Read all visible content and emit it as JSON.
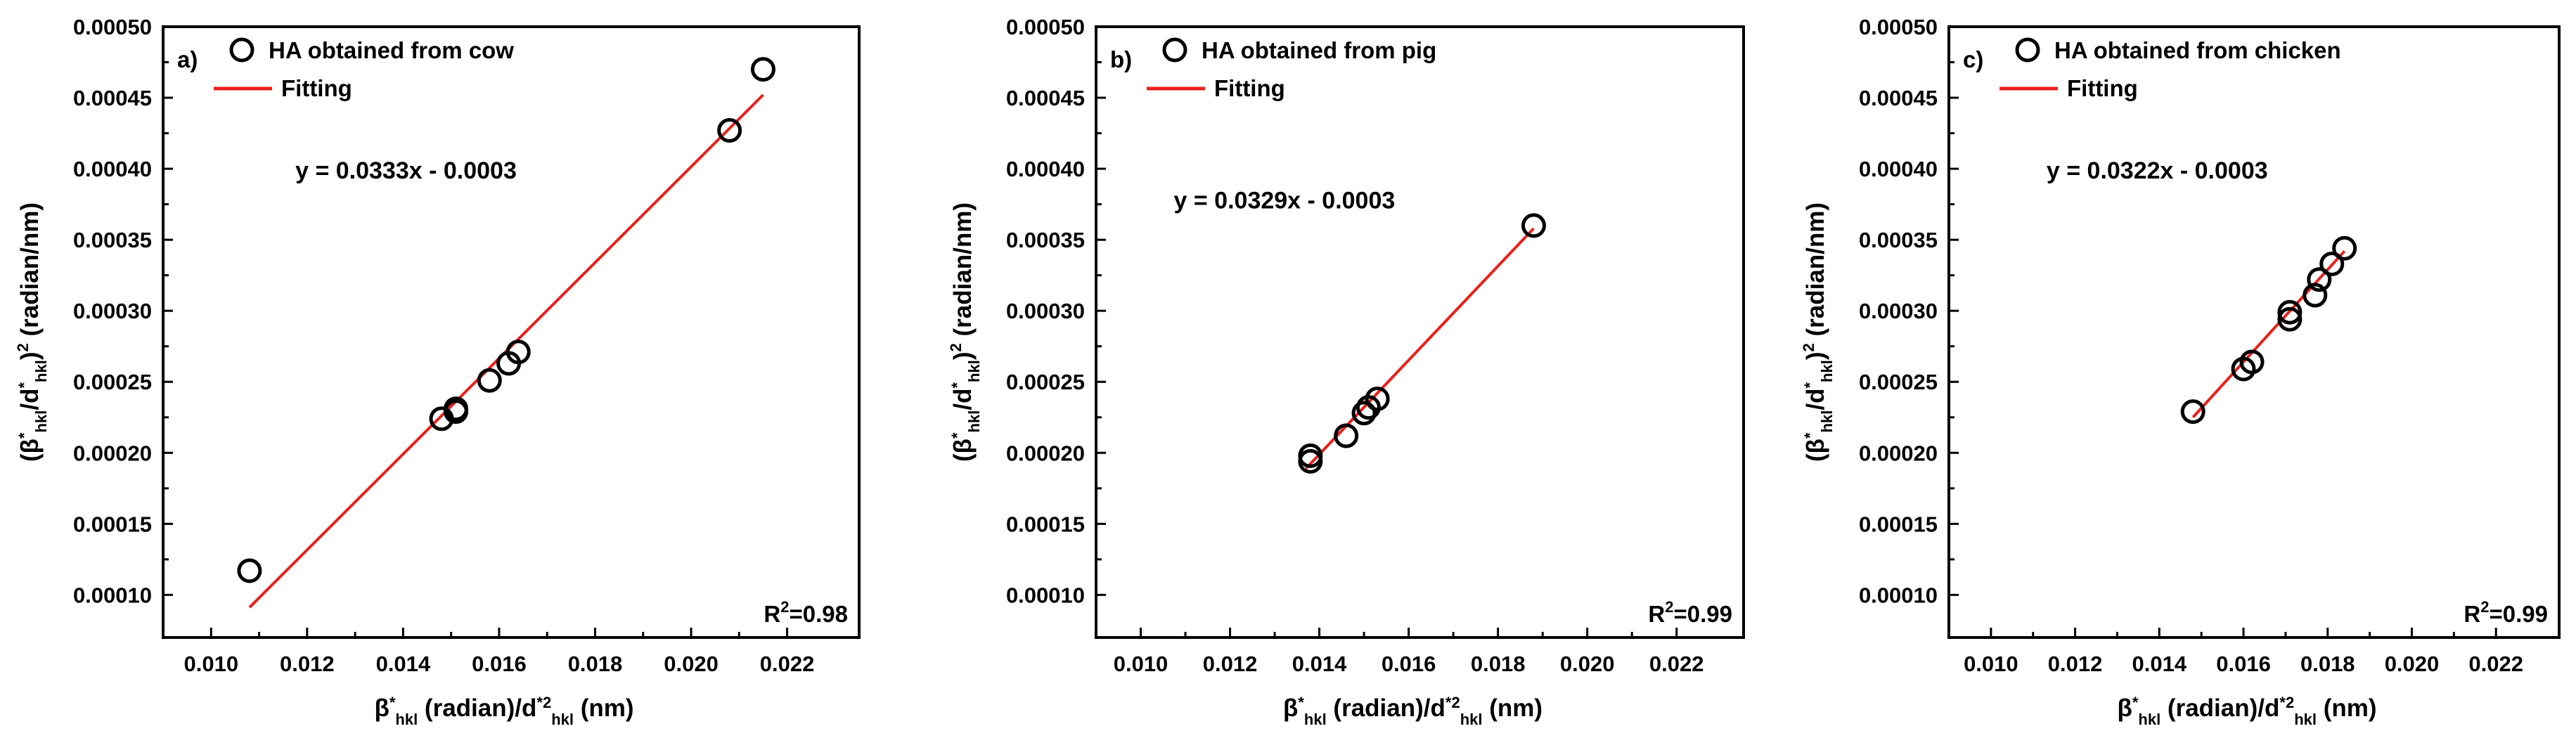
{
  "chart_data": [
    {
      "type": "scatter",
      "panel_label": "a)",
      "title": "",
      "xlabel": "β*hkl (radian)/d*2hkl (nm)",
      "ylabel": "(β*hkl/d*hkl)2 (radian/nm)",
      "xlim": [
        0.009,
        0.0235
      ],
      "ylim": [
        7e-05,
        0.0005
      ],
      "x_ticks": [
        "0.010",
        "0.012",
        "0.014",
        "0.016",
        "0.018",
        "0.020",
        "0.022"
      ],
      "y_ticks": [
        "0.00010",
        "0.00015",
        "0.00020",
        "0.00025",
        "0.00030",
        "0.00035",
        "0.00040",
        "0.00045",
        "0.00050"
      ],
      "legend": {
        "marker_label": "HA obtained from cow",
        "line_label": "Fitting",
        "placement": "top-left"
      },
      "equation": "y = 0.0333x - 0.0003",
      "r2": {
        "prefix": "R",
        "sup": "2",
        "value": "=0.98"
      },
      "series": [
        {
          "name": "HA obtained from cow",
          "x": [
            0.0108,
            0.0148,
            0.0151,
            0.0151,
            0.0158,
            0.0162,
            0.0164,
            0.0208,
            0.0215
          ],
          "y": [
            0.000117,
            0.000224,
            0.000231,
            0.000229,
            0.000251,
            0.000263,
            0.000271,
            0.000427,
            0.00047
          ]
        }
      ],
      "fit": {
        "name": "Fitting",
        "x": [
          0.0108,
          0.0215
        ],
        "y": [
          9.12e-05,
          0.000452
        ]
      },
      "colors": {
        "marker": "#000000",
        "fit": "#e8211b"
      }
    },
    {
      "type": "scatter",
      "panel_label": "b)",
      "title": "",
      "xlabel": "β*hkl (radian)/d*2hkl (nm)",
      "ylabel": "(β*hkl/d*hkl)2 (radian/nm)",
      "xlim": [
        0.009,
        0.0235
      ],
      "ylim": [
        7e-05,
        0.0005
      ],
      "x_ticks": [
        "0.010",
        "0.012",
        "0.014",
        "0.016",
        "0.018",
        "0.020",
        "0.022"
      ],
      "y_ticks": [
        "0.00010",
        "0.00015",
        "0.00020",
        "0.00025",
        "0.00030",
        "0.00035",
        "0.00040",
        "0.00045",
        "0.00050"
      ],
      "legend": {
        "marker_label": "HA obtained from pig",
        "line_label": "Fitting",
        "placement": "top-left"
      },
      "equation": "y = 0.0329x - 0.0003",
      "r2": {
        "prefix": "R",
        "sup": "2",
        "value": "=0.99"
      },
      "series": [
        {
          "name": "HA obtained from pig",
          "x": [
            0.0138,
            0.0138,
            0.0146,
            0.015,
            0.0151,
            0.0153,
            0.0188
          ],
          "y": [
            0.000194,
            0.000198,
            0.000212,
            0.000228,
            0.000232,
            0.000238,
            0.00036
          ]
        }
      ],
      "fit": {
        "name": "Fitting",
        "x": [
          0.0137,
          0.0188
        ],
        "y": [
          0.000189,
          0.000358
        ]
      },
      "colors": {
        "marker": "#000000",
        "fit": "#e8211b"
      }
    },
    {
      "type": "scatter",
      "panel_label": "c)",
      "title": "",
      "xlabel": "β*hkl (radian)/d*2hkl (nm)",
      "ylabel": "(β*hkl/d*hkl)2 (radian/nm)",
      "xlim": [
        0.009,
        0.0235
      ],
      "ylim": [
        7e-05,
        0.0005
      ],
      "x_ticks": [
        "0.010",
        "0.012",
        "0.014",
        "0.016",
        "0.018",
        "0.020",
        "0.022"
      ],
      "y_ticks": [
        "0.00010",
        "0.00015",
        "0.00020",
        "0.00025",
        "0.00030",
        "0.00035",
        "0.00040",
        "0.00045",
        "0.00050"
      ],
      "legend": {
        "marker_label": "HA obtained from chicken",
        "line_label": "Fitting",
        "placement": "top-left"
      },
      "equation": "y = 0.0322x - 0.0003",
      "r2": {
        "prefix": "R",
        "sup": "2",
        "value": "=0.99"
      },
      "series": [
        {
          "name": "HA obtained from chicken",
          "x": [
            0.0148,
            0.016,
            0.0162,
            0.0171,
            0.0171,
            0.0177,
            0.0178,
            0.0181,
            0.0184
          ],
          "y": [
            0.000229,
            0.000259,
            0.000264,
            0.000294,
            0.000299,
            0.000311,
            0.000322,
            0.000333,
            0.000344
          ]
        }
      ],
      "fit": {
        "name": "Fitting",
        "x": [
          0.0148,
          0.0184
        ],
        "y": [
          0.000225,
          0.000342
        ]
      },
      "colors": {
        "marker": "#000000",
        "fit": "#e8211b"
      }
    }
  ]
}
